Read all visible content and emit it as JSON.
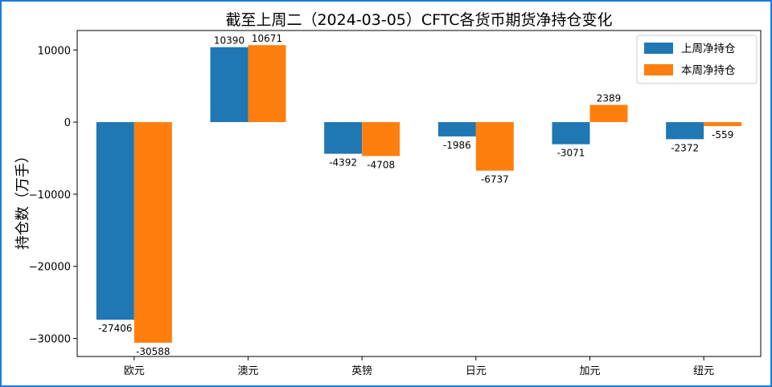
{
  "chart_data": {
    "type": "bar",
    "title": "截至上周二（2024-03-05）CFTC各货币期货净持仓变化",
    "xlabel": "",
    "ylabel": "持仓数（万手）",
    "categories": [
      "欧元",
      "澳元",
      "英镑",
      "日元",
      "加元",
      "纽元"
    ],
    "series": [
      {
        "name": "上周净持仓",
        "color": "#1f77b4",
        "values": [
          -27406,
          10390,
          -4392,
          -1986,
          -3071,
          -2372
        ]
      },
      {
        "name": "本周净持仓",
        "color": "#ff7f0e",
        "values": [
          -30588,
          10671,
          -4708,
          -6737,
          2389,
          -559
        ]
      }
    ],
    "ylim": [
      -32500,
      12700
    ],
    "yticks": [
      10000,
      0,
      -10000,
      -20000,
      -30000
    ],
    "ytick_labels": [
      "10000",
      "0",
      "−10000",
      "−20000",
      "−30000"
    ],
    "legend_position": "top-right",
    "grid": false
  }
}
